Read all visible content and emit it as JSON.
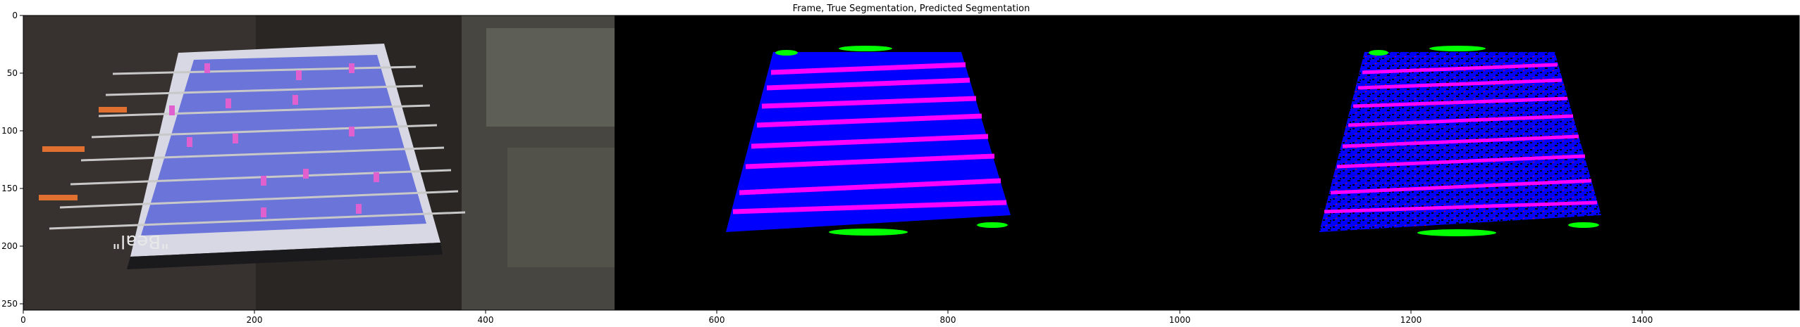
{
  "figure": {
    "title": "Frame, True Segmentation, Predicted Segmentation",
    "panels": [
      "frame",
      "true-segmentation",
      "predicted-segmentation"
    ],
    "frame_text": "\"Beal\"",
    "colors": {
      "background": "#000000",
      "field": "#0000ff",
      "rod": "#ff00ff",
      "player": "#00ff00",
      "noise": "#ff0000"
    }
  },
  "chart_data": {
    "type": "image",
    "title": "Frame, True Segmentation, Predicted Segmentation",
    "xlabel": "",
    "ylabel": "",
    "xlim": [
      0,
      1536
    ],
    "ylim": [
      256,
      0
    ],
    "xticks": [
      0,
      200,
      400,
      600,
      800,
      1000,
      1200,
      1400
    ],
    "yticks": [
      0,
      50,
      100,
      150,
      200,
      250
    ]
  }
}
